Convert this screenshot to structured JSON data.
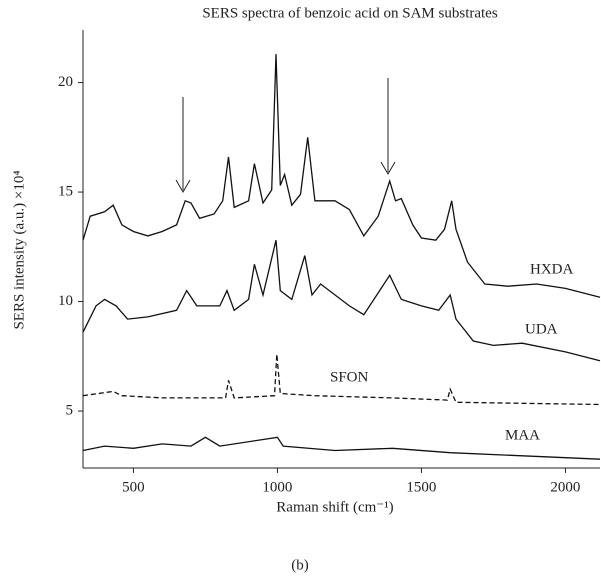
{
  "chart_data": {
    "type": "line",
    "title": "SERS spectra of benzoic acid on SAM substrates",
    "x_label": "Raman shift (cm⁻¹)",
    "y_label": "SERS intensity (a.u.) ×10⁴",
    "caption": "(b)",
    "xlim": [
      325,
      2120
    ],
    "ylim": [
      2.4,
      22.4
    ],
    "xticks": [
      500,
      1000,
      1500,
      2000
    ],
    "yticks": [
      5,
      10,
      15,
      20
    ],
    "series": [
      {
        "name": "HXDA",
        "color": "#111111",
        "dashed": false,
        "x": [
          325,
          350,
          400,
          430,
          460,
          500,
          550,
          600,
          650,
          680,
          700,
          730,
          780,
          810,
          830,
          850,
          900,
          920,
          950,
          980,
          995,
          1010,
          1025,
          1050,
          1080,
          1105,
          1130,
          1200,
          1250,
          1300,
          1350,
          1390,
          1410,
          1430,
          1470,
          1500,
          1550,
          1580,
          1605,
          1620,
          1660,
          1720,
          1800,
          1900,
          2000,
          2120
        ],
        "values": [
          12.8,
          13.9,
          14.1,
          14.4,
          13.5,
          13.2,
          13.0,
          13.2,
          13.5,
          14.6,
          14.5,
          13.8,
          14.0,
          14.6,
          16.6,
          14.3,
          14.6,
          16.3,
          14.5,
          15.1,
          21.3,
          15.3,
          15.8,
          14.4,
          14.9,
          17.5,
          14.6,
          14.6,
          14.2,
          13.0,
          13.9,
          15.5,
          14.6,
          14.7,
          13.5,
          12.9,
          12.8,
          13.3,
          14.6,
          13.3,
          11.8,
          10.8,
          10.7,
          10.8,
          10.6,
          10.2
        ]
      },
      {
        "name": "UDA",
        "color": "#111111",
        "dashed": false,
        "x": [
          325,
          370,
          400,
          440,
          480,
          550,
          650,
          685,
          720,
          800,
          825,
          850,
          900,
          920,
          950,
          995,
          1010,
          1050,
          1095,
          1120,
          1150,
          1250,
          1300,
          1390,
          1430,
          1500,
          1560,
          1600,
          1620,
          1680,
          1750,
          1850,
          2000,
          2120
        ],
        "values": [
          8.6,
          9.8,
          10.1,
          9.8,
          9.2,
          9.3,
          9.6,
          10.5,
          9.8,
          9.8,
          10.5,
          9.6,
          10.1,
          11.7,
          10.3,
          12.8,
          10.5,
          10.1,
          12.1,
          10.3,
          10.8,
          9.8,
          9.4,
          11.2,
          10.1,
          9.8,
          9.6,
          10.3,
          9.2,
          8.2,
          8.0,
          8.1,
          7.7,
          7.3
        ]
      },
      {
        "name": "SFON",
        "color": "#111111",
        "dashed": true,
        "x": [
          325,
          430,
          460,
          600,
          820,
          830,
          850,
          990,
          998,
          1010,
          1130,
          1400,
          1590,
          1600,
          1620,
          2120
        ],
        "values": [
          5.7,
          5.9,
          5.7,
          5.6,
          5.6,
          6.4,
          5.6,
          5.7,
          7.6,
          5.8,
          5.7,
          5.6,
          5.5,
          6.0,
          5.4,
          5.3
        ]
      },
      {
        "name": "MAA",
        "color": "#111111",
        "dashed": false,
        "x": [
          325,
          400,
          500,
          600,
          700,
          750,
          800,
          1000,
          1020,
          1200,
          1400,
          1600,
          2120
        ],
        "values": [
          3.2,
          3.4,
          3.3,
          3.5,
          3.4,
          3.8,
          3.4,
          3.8,
          3.4,
          3.2,
          3.3,
          3.1,
          2.8
        ]
      }
    ]
  }
}
